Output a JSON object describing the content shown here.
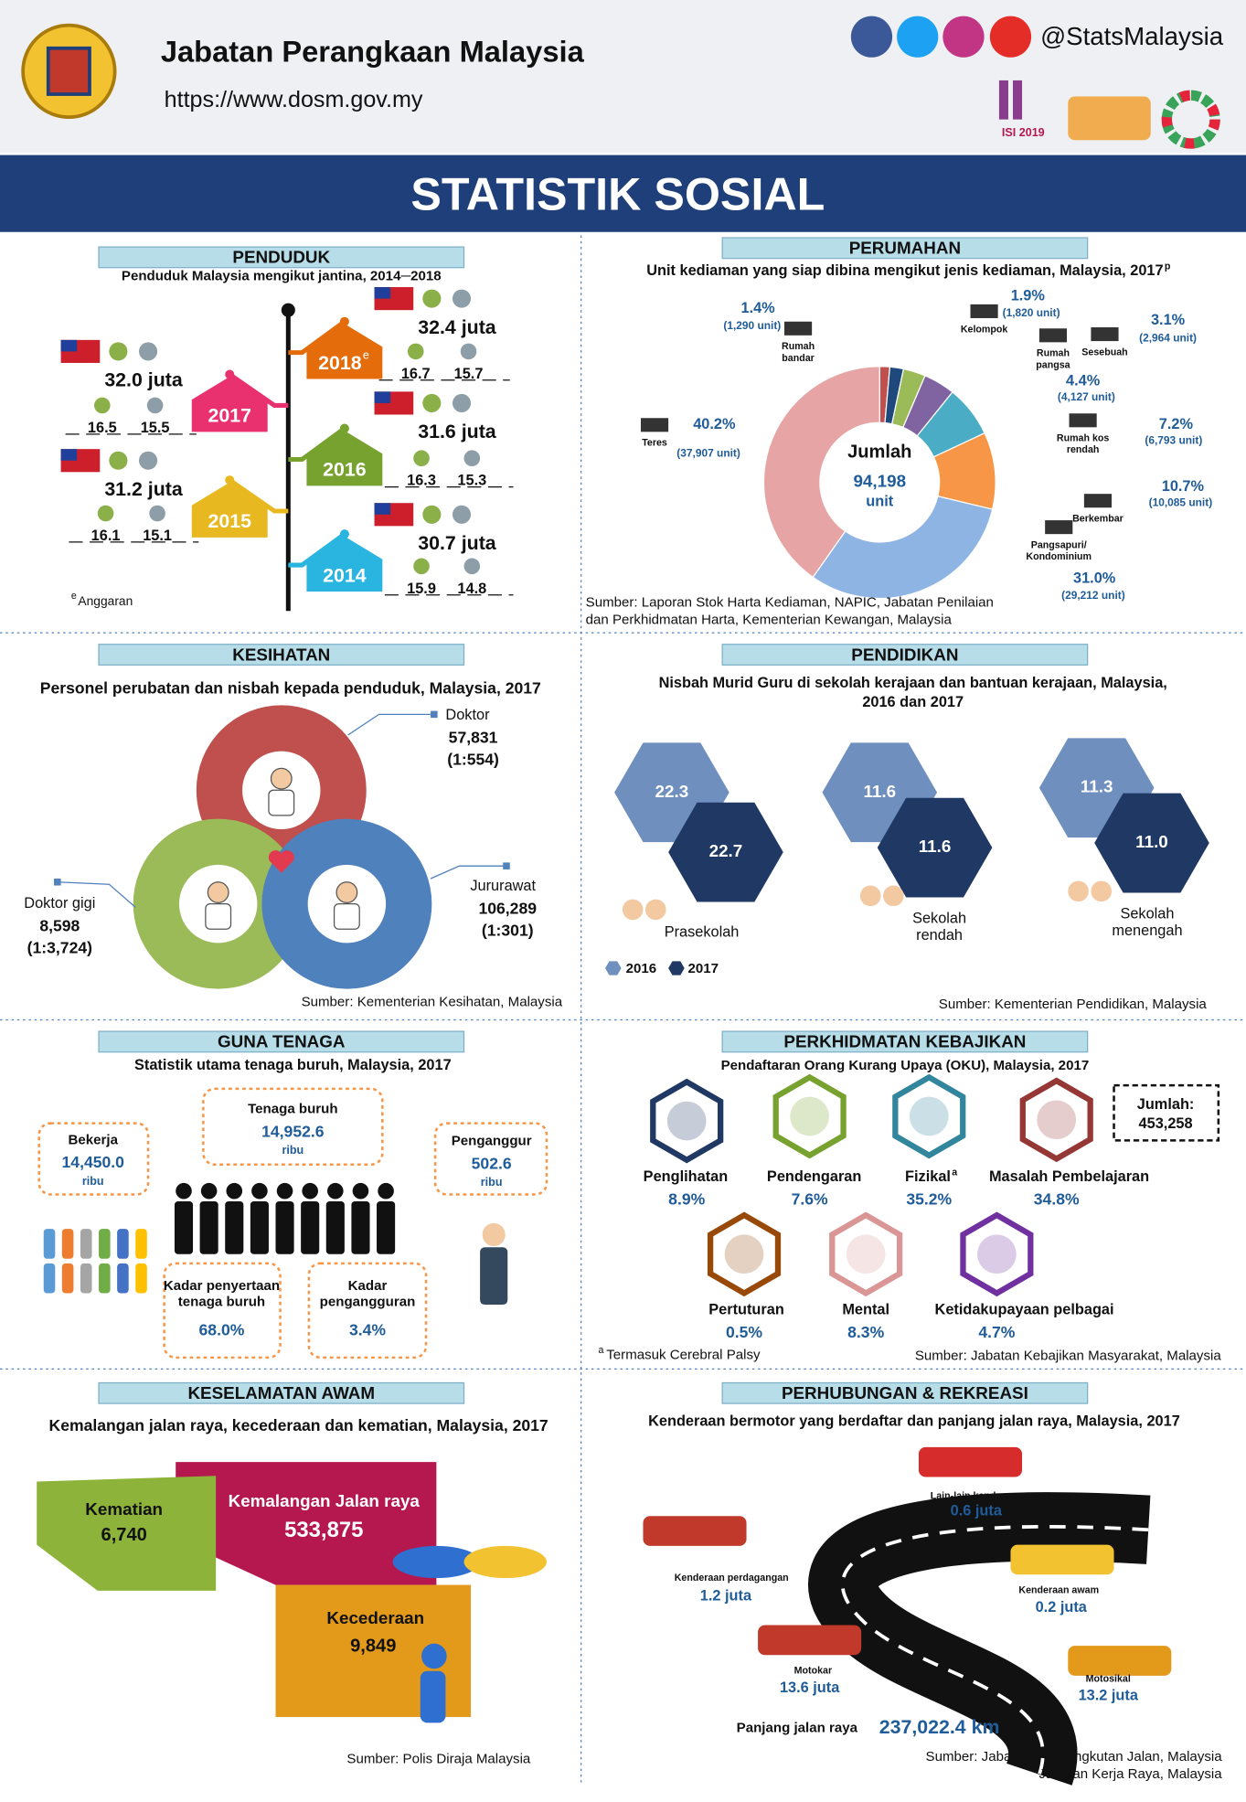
{
  "header": {
    "org": "Jabatan Perangkaan Malaysia",
    "url": "https://www.dosm.gov.my",
    "social": "@StatsMalaysia",
    "logo_text": "ISI 2019",
    "title": "STATISTIK SOSIAL"
  },
  "penduduk": {
    "heading": "PENDUDUK",
    "subtitle": "Penduduk Malaysia mengikut jantina, 2014─2018",
    "years": [
      {
        "year": "2018",
        "sup": "e",
        "total": "32.4 juta",
        "male": "16.7",
        "female": "15.7"
      },
      {
        "year": "2017",
        "total": "32.0 juta",
        "male": "16.5",
        "female": "15.5"
      },
      {
        "year": "2016",
        "total": "31.6 juta",
        "male": "16.3",
        "female": "15.3"
      },
      {
        "year": "2015",
        "total": "31.2 juta",
        "male": "16.1",
        "female": "15.1"
      },
      {
        "year": "2014",
        "total": "30.7 juta",
        "male": "15.9",
        "female": "14.8"
      }
    ],
    "note_sup": "e",
    "note": "Anggaran"
  },
  "perumahan": {
    "heading": "PERUMAHAN",
    "subtitle": "Unit kediaman yang siap dibina mengikut jenis kediaman, Malaysia, 2017",
    "subtitle_sup": "p",
    "center": [
      "Jumlah",
      "94,198",
      "unit"
    ],
    "categories": [
      [
        "Rumah",
        "bandar"
      ],
      [
        "Kelompok"
      ],
      [
        "Sesebuah"
      ],
      [
        "Rumah",
        "pangsa"
      ],
      [
        "Rumah kos",
        "rendah"
      ],
      [
        "Berkembar"
      ],
      [
        "Pangsapuri/",
        "Kondominium"
      ],
      [
        "Teres"
      ]
    ],
    "values": [
      1.4,
      1.9,
      3.1,
      4.4,
      7.2,
      10.7,
      31.0,
      40.2
    ],
    "value_labels": [
      "1.4%",
      "1.9%",
      "3.1%",
      "4.4%",
      "7.2%",
      "10.7%",
      "31.0%",
      "40.2%"
    ],
    "units": [
      "(1,290 unit)",
      "(1,820 unit)",
      "(2,964 unit)",
      "(4,127 unit)",
      "(6,793 unit)",
      "(10,085 unit)",
      "(29,212 unit)",
      "(37,907 unit)"
    ],
    "colors": [
      "#c0504d",
      "#1f497d",
      "#9bbb59",
      "#8064a2",
      "#4bacc6",
      "#f79646",
      "#8eb4e3",
      "#e6a4a4"
    ],
    "source": [
      "Sumber: Laporan Stok Harta Kediaman, NAPIC, Jabatan Penilaian",
      "dan Perkhidmatan Harta, Kementerian Kewangan, Malaysia"
    ]
  },
  "kesihatan": {
    "heading": "KESIHATAN",
    "subtitle": "Personel perubatan dan nisbah kepada penduduk, Malaysia, 2017",
    "items": [
      {
        "name": "Doktor",
        "count": "57,831",
        "ratio": "(1:554)"
      },
      {
        "name": "Jururawat",
        "count": "106,289",
        "ratio": "(1:301)"
      },
      {
        "name": "Doktor gigi",
        "count": "8,598",
        "ratio": "(1:3,724)"
      }
    ],
    "source": "Sumber: Kementerian Kesihatan, Malaysia"
  },
  "pendidikan": {
    "heading": "PENDIDIKAN",
    "subtitle": [
      "Nisbah Murid Guru di sekolah kerajaan dan bantuan kerajaan, Malaysia,",
      "2016 dan 2017"
    ],
    "levels": [
      {
        "name": [
          "Prasekolah"
        ],
        "v2016": "22.3",
        "v2017": "22.7"
      },
      {
        "name": [
          "Sekolah",
          "rendah"
        ],
        "v2016": "11.6",
        "v2017": "11.6"
      },
      {
        "name": [
          "Sekolah",
          "menengah"
        ],
        "v2016": "11.3",
        "v2017": "11.0"
      }
    ],
    "legend": [
      "2016",
      "2017"
    ],
    "source": "Sumber: Kementerian Pendidikan, Malaysia"
  },
  "guna_tenaga": {
    "heading": "GUNA TENAGA",
    "subtitle": "Statistik utama tenaga buruh, Malaysia, 2017",
    "boxes": [
      {
        "label": [
          "Tenaga buruh"
        ],
        "value": "14,952.6",
        "unit": "ribu"
      },
      {
        "label": [
          "Bekerja"
        ],
        "value": "14,450.0",
        "unit": "ribu"
      },
      {
        "label": [
          "Penganggur"
        ],
        "value": "502.6",
        "unit": "ribu"
      },
      {
        "label": [
          "Kadar penyertaan",
          "tenaga buruh"
        ],
        "value": "68.0%"
      },
      {
        "label": [
          "Kadar",
          "pengangguran"
        ],
        "value": "3.4%"
      }
    ]
  },
  "kebajikan": {
    "heading": "PERKHIDMATAN KEBAJIKAN",
    "subtitle": "Pendaftaran Orang Kurang Upaya (OKU), Malaysia, 2017",
    "total_label": "Jumlah:",
    "total": "453,258",
    "items": [
      {
        "name": "Penglihatan",
        "value": "8.9%",
        "color": "#1f3864"
      },
      {
        "name": "Pendengaran",
        "value": "7.6%",
        "color": "#77a22f"
      },
      {
        "name": "Fizikal",
        "sup": "a",
        "value": "35.2%",
        "color": "#31859c"
      },
      {
        "name": "Masalah Pembelajaran",
        "value": "34.8%",
        "color": "#953735"
      },
      {
        "name": "Pertuturan",
        "value": "0.5%",
        "color": "#984807"
      },
      {
        "name": "Mental",
        "value": "8.3%",
        "color": "#d99694"
      },
      {
        "name": "Ketidakupayaan pelbagai",
        "value": "4.7%",
        "color": "#7030a0"
      }
    ],
    "note_sup": "a",
    "note": "Termasuk Cerebral Palsy",
    "source": "Sumber: Jabatan Kebajikan Masyarakat, Malaysia"
  },
  "keselamatan": {
    "heading": "KESELAMATAN AWAM",
    "subtitle": "Kemalangan jalan raya, kecederaan dan kematian, Malaysia, 2017",
    "items": [
      {
        "name": "Kematian",
        "value": "6,740"
      },
      {
        "name": "Kemalangan Jalan raya",
        "value": "533,875"
      },
      {
        "name": "Kecederaan",
        "value": "9,849"
      }
    ],
    "source": "Sumber: Polis Diraja Malaysia"
  },
  "perhubungan": {
    "heading": "PERHUBUNGAN & REKREASI",
    "subtitle": "Kenderaan bermotor yang berdaftar dan panjang jalan raya, Malaysia, 2017",
    "vehicles": [
      {
        "name": "Lain-lain kenderaan",
        "value": "0.6 juta"
      },
      {
        "name": "Kenderaan perdagangan",
        "value": "1.2 juta"
      },
      {
        "name": "Kenderaan awam",
        "value": "0.2 juta"
      },
      {
        "name": "Motokar",
        "value": "13.6 juta"
      },
      {
        "name": "Motosikal",
        "value": "13.2 juta"
      }
    ],
    "road_label": "Panjang  jalan raya",
    "road_value": "237,022.4 km",
    "source": [
      "Sumber: Jabatan Pengangkutan Jalan, Malaysia",
      "Jabatan Kerja Raya, Malaysia"
    ]
  }
}
